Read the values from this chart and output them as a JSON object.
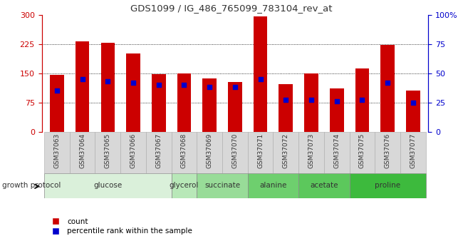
{
  "title": "GDS1099 / IG_486_765099_783104_rev_at",
  "samples": [
    "GSM37063",
    "GSM37064",
    "GSM37065",
    "GSM37066",
    "GSM37067",
    "GSM37068",
    "GSM37069",
    "GSM37070",
    "GSM37071",
    "GSM37072",
    "GSM37073",
    "GSM37074",
    "GSM37075",
    "GSM37076",
    "GSM37077"
  ],
  "counts": [
    145,
    232,
    228,
    200,
    147,
    150,
    137,
    127,
    296,
    122,
    150,
    110,
    162,
    222,
    105
  ],
  "percentiles": [
    35,
    45,
    43,
    42,
    40,
    40,
    38,
    38,
    45,
    27,
    27,
    26,
    27,
    42,
    25
  ],
  "groups": [
    {
      "label": "glucose",
      "start": 0,
      "end": 4,
      "color": "#daf0da"
    },
    {
      "label": "glycerol",
      "start": 5,
      "end": 5,
      "color": "#b8e8b8"
    },
    {
      "label": "succinate",
      "start": 6,
      "end": 7,
      "color": "#98dc98"
    },
    {
      "label": "alanine",
      "start": 8,
      "end": 9,
      "color": "#6ecf6e"
    },
    {
      "label": "acetate",
      "start": 10,
      "end": 11,
      "color": "#5cc85c"
    },
    {
      "label": "proline",
      "start": 12,
      "end": 14,
      "color": "#3dba3d"
    }
  ],
  "bar_color": "#cc0000",
  "percentile_color": "#0000cc",
  "left_axis_color": "#cc0000",
  "right_axis_color": "#0000cc",
  "ylim_left": [
    0,
    300
  ],
  "ylim_right": [
    0,
    100
  ],
  "left_ticks": [
    0,
    75,
    150,
    225,
    300
  ],
  "right_ticks": [
    0,
    25,
    50,
    75,
    100
  ],
  "right_tick_labels": [
    "0",
    "25",
    "50",
    "75",
    "100%"
  ],
  "plot_bg": "#ffffff",
  "tick_box_color": "#d8d8d8",
  "grid_color": "#000000"
}
